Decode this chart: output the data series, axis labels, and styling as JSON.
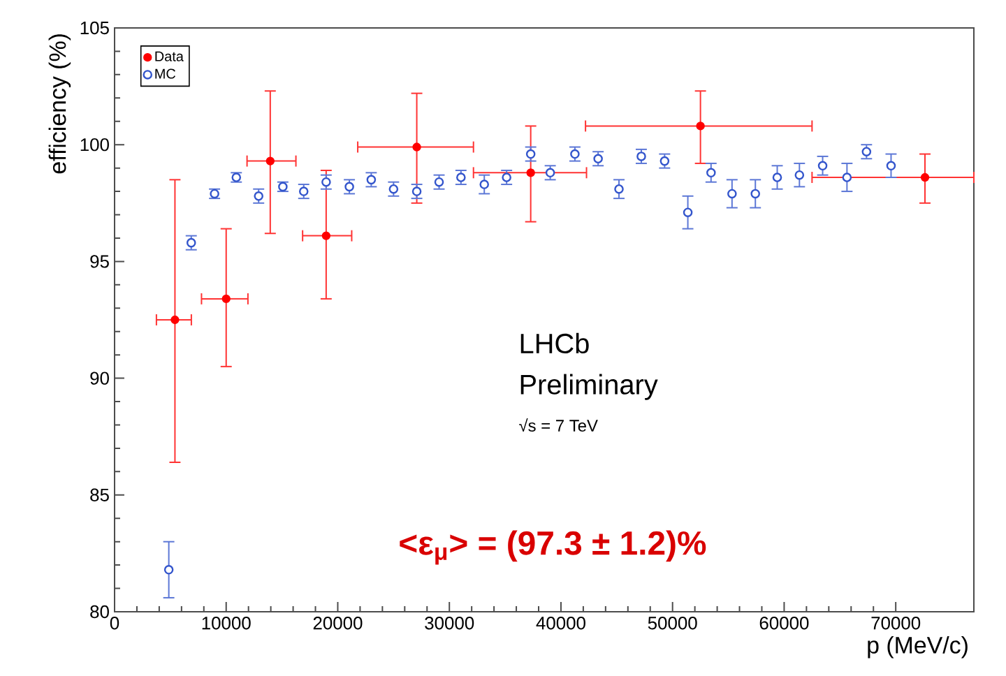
{
  "chart_data": {
    "type": "scatter",
    "xlabel": "p (MeV/c)",
    "ylabel": "efficiency (%)",
    "xlim": [
      0,
      77000
    ],
    "ylim": [
      80,
      105
    ],
    "xticks": [
      0,
      10000,
      20000,
      30000,
      40000,
      50000,
      60000,
      70000
    ],
    "yticks": [
      80,
      85,
      90,
      95,
      100,
      105
    ],
    "grid": false,
    "legend": "top left",
    "series": [
      {
        "name": "Data",
        "color": "#ff0000",
        "x": [
          5410,
          10000,
          13950,
          18960,
          27080,
          37290,
          52500,
          72620
        ],
        "values": [
          92.5,
          93.4,
          99.3,
          96.1,
          99.9,
          98.8,
          100.8,
          98.6
        ],
        "errors": [
          [
            86.4,
            98.5
          ],
          [
            90.5,
            96.4
          ],
          [
            96.2,
            102.3
          ],
          [
            93.4,
            98.9
          ],
          [
            97.5,
            102.2
          ],
          [
            96.7,
            100.8
          ],
          [
            99.2,
            102.3
          ],
          [
            97.5,
            99.6
          ]
        ],
        "xerrors": [
          [
            3750,
            6880
          ],
          [
            7790,
            11950
          ],
          [
            11870,
            16250
          ],
          [
            16850,
            21250
          ],
          [
            21790,
            32160
          ],
          [
            32160,
            42290
          ],
          [
            42200,
            62500
          ],
          [
            62500,
            77000
          ]
        ]
      },
      {
        "name": "MC",
        "color": "#3355cc",
        "x": [
          4860,
          6870,
          8960,
          10910,
          12910,
          15080,
          16950,
          18960,
          21040,
          23000,
          25000,
          27080,
          29080,
          31040,
          33130,
          35130,
          37290,
          39040,
          41250,
          43330,
          45200,
          47200,
          49290,
          51370,
          53450,
          55330,
          57420,
          59380,
          61370,
          63450,
          65630,
          67380,
          69580
        ],
        "values": [
          81.8,
          95.8,
          97.9,
          98.6,
          97.8,
          98.2,
          98.0,
          98.4,
          98.2,
          98.5,
          98.1,
          98.0,
          98.4,
          98.6,
          98.3,
          98.6,
          99.6,
          98.8,
          99.6,
          99.4,
          98.1,
          99.5,
          99.3,
          97.1,
          98.8,
          97.9,
          97.9,
          98.6,
          98.7,
          99.1,
          98.6,
          99.7,
          99.1
        ],
        "errors": [
          1.2,
          0.3,
          0.2,
          0.2,
          0.3,
          0.2,
          0.3,
          0.3,
          0.3,
          0.3,
          0.3,
          0.3,
          0.3,
          0.3,
          0.4,
          0.3,
          0.3,
          0.3,
          0.3,
          0.3,
          0.4,
          0.3,
          0.3,
          0.7,
          0.4,
          0.6,
          0.6,
          0.5,
          0.5,
          0.4,
          0.6,
          0.3,
          0.5
        ]
      }
    ],
    "annotations": [
      "LHCb",
      "Preliminary",
      "√s = 7 TeV",
      "<ε$_{μ}$> = (97.3 ± 1.2)%"
    ]
  }
}
